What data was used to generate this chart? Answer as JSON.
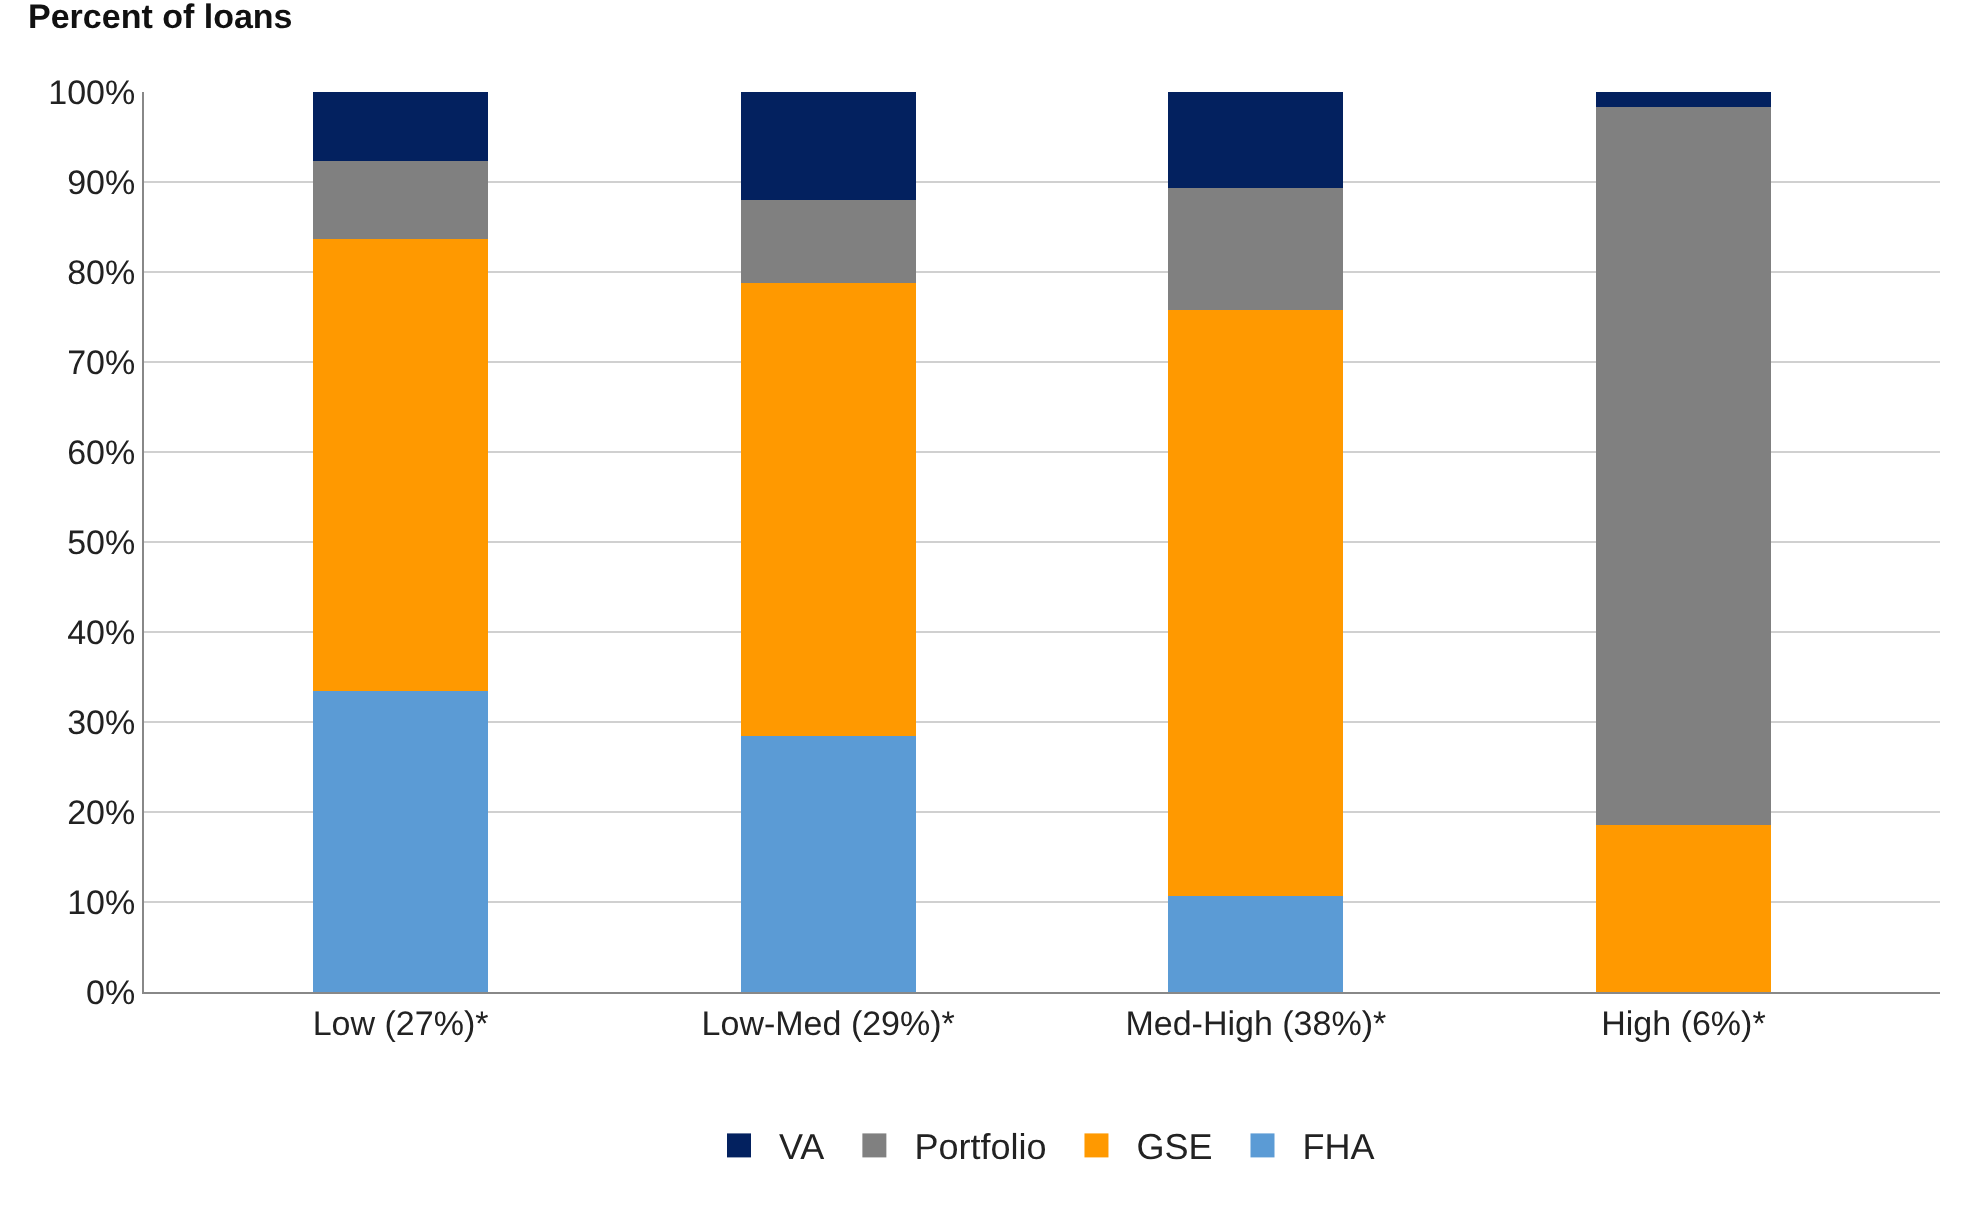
{
  "chart_data": {
    "type": "bar",
    "stacked": true,
    "ylabel": "Percent of loans",
    "categories": [
      "Low (27%)*",
      "Low-Med (29%)*",
      "Med-High (38%)*",
      "High (6%)*"
    ],
    "series": [
      {
        "name": "FHA",
        "color": "#5b9bd5",
        "values": [
          33.4,
          28.5,
          10.7,
          0
        ]
      },
      {
        "name": "GSE",
        "color": "#ff9900",
        "values": [
          50.3,
          50.3,
          65.1,
          18.6
        ]
      },
      {
        "name": "Portfolio",
        "color": "#808080",
        "values": [
          8.6,
          9.2,
          13.5,
          79.7
        ]
      },
      {
        "name": "VA",
        "color": "#03215f",
        "values": [
          7.7,
          12.0,
          10.7,
          1.7
        ]
      }
    ],
    "ylim": [
      0,
      100
    ],
    "yticks": [
      {
        "value": 0,
        "label": "0%"
      },
      {
        "value": 10,
        "label": "10%"
      },
      {
        "value": 20,
        "label": "20%"
      },
      {
        "value": 30,
        "label": "30%"
      },
      {
        "value": 40,
        "label": "40%"
      },
      {
        "value": 50,
        "label": "50%"
      },
      {
        "value": 60,
        "label": "60%"
      },
      {
        "value": 70,
        "label": "70%"
      },
      {
        "value": 80,
        "label": "80%"
      },
      {
        "value": 90,
        "label": "90%"
      },
      {
        "value": 100,
        "label": "100%"
      }
    ],
    "grid": "y",
    "legend": "bottom"
  }
}
